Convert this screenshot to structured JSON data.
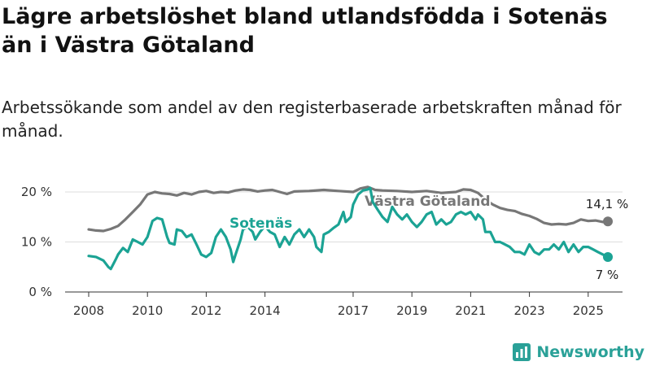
{
  "header": {
    "title": "Lägre arbetslöshet bland utlandsfödda i Sotenäs än i Västra Götaland",
    "subtitle": "Arbetssökande som andel av den registerbaserade arbetskraften månad för månad."
  },
  "brand": {
    "name": "Newsworthy",
    "icon": "newsworthy-logo-icon",
    "color": "#2aa198"
  },
  "colors": {
    "sotenas": "#1ba394",
    "vastra": "#777777",
    "grid": "#dddddd",
    "axis": "#333333"
  },
  "chart_data": {
    "type": "line",
    "title": "Lägre arbetslöshet bland utlandsfödda i Sotenäs än i Västra Götaland",
    "subtitle": "Arbetssökande som andel av den registerbaserade arbetskraften månad för månad.",
    "x_ticks": [
      "2008",
      "2010",
      "2012",
      "2014",
      "2017",
      "2019",
      "2021",
      "2023",
      "2025"
    ],
    "y_ticks": [
      "0 %",
      "10 %",
      "20 %"
    ],
    "ylim": [
      0,
      20
    ],
    "grid": true,
    "series": [
      {
        "name": "Västra Götaland",
        "end_label": "14,1 %",
        "points": [
          [
            2008.0,
            12.5
          ],
          [
            2008.25,
            12.3
          ],
          [
            2008.5,
            12.2
          ],
          [
            2008.75,
            12.6
          ],
          [
            2009.0,
            13.2
          ],
          [
            2009.25,
            14.5
          ],
          [
            2009.5,
            16.0
          ],
          [
            2009.75,
            17.5
          ],
          [
            2010.0,
            19.5
          ],
          [
            2010.25,
            20.0
          ],
          [
            2010.5,
            19.7
          ],
          [
            2010.75,
            19.6
          ],
          [
            2011.0,
            19.3
          ],
          [
            2011.25,
            19.8
          ],
          [
            2011.5,
            19.5
          ],
          [
            2011.75,
            20.0
          ],
          [
            2012.0,
            20.2
          ],
          [
            2012.25,
            19.8
          ],
          [
            2012.5,
            20.0
          ],
          [
            2012.75,
            19.9
          ],
          [
            2013.0,
            20.3
          ],
          [
            2013.25,
            20.5
          ],
          [
            2013.5,
            20.4
          ],
          [
            2013.75,
            20.1
          ],
          [
            2014.0,
            20.3
          ],
          [
            2014.25,
            20.4
          ],
          [
            2014.5,
            20.0
          ],
          [
            2014.75,
            19.6
          ],
          [
            2015.0,
            20.1
          ],
          [
            2015.5,
            20.2
          ],
          [
            2016.0,
            20.4
          ],
          [
            2016.5,
            20.2
          ],
          [
            2017.0,
            20.0
          ],
          [
            2017.25,
            20.7
          ],
          [
            2017.5,
            21.0
          ],
          [
            2017.75,
            20.4
          ],
          [
            2018.0,
            20.3
          ],
          [
            2018.5,
            20.2
          ],
          [
            2019.0,
            20.0
          ],
          [
            2019.5,
            20.2
          ],
          [
            2020.0,
            19.8
          ],
          [
            2020.5,
            20.0
          ],
          [
            2020.75,
            20.5
          ],
          [
            2021.0,
            20.4
          ],
          [
            2021.25,
            19.8
          ],
          [
            2021.5,
            18.5
          ],
          [
            2021.75,
            17.5
          ],
          [
            2022.0,
            16.8
          ],
          [
            2022.25,
            16.4
          ],
          [
            2022.5,
            16.2
          ],
          [
            2022.75,
            15.6
          ],
          [
            2023.0,
            15.2
          ],
          [
            2023.25,
            14.6
          ],
          [
            2023.5,
            13.8
          ],
          [
            2023.75,
            13.5
          ],
          [
            2024.0,
            13.6
          ],
          [
            2024.25,
            13.5
          ],
          [
            2024.5,
            13.8
          ],
          [
            2024.75,
            14.5
          ],
          [
            2025.0,
            14.2
          ],
          [
            2025.25,
            14.3
          ],
          [
            2025.5,
            14.0
          ],
          [
            2025.67,
            14.1
          ]
        ]
      },
      {
        "name": "Sotenäs",
        "end_label": "7 %",
        "points": [
          [
            2008.0,
            7.2
          ],
          [
            2008.25,
            7.0
          ],
          [
            2008.5,
            6.3
          ],
          [
            2008.67,
            5.0
          ],
          [
            2008.75,
            4.6
          ],
          [
            2008.92,
            6.5
          ],
          [
            2009.0,
            7.5
          ],
          [
            2009.17,
            8.8
          ],
          [
            2009.33,
            8.0
          ],
          [
            2009.5,
            10.5
          ],
          [
            2009.67,
            10.0
          ],
          [
            2009.83,
            9.5
          ],
          [
            2010.0,
            11.0
          ],
          [
            2010.17,
            14.2
          ],
          [
            2010.33,
            14.8
          ],
          [
            2010.5,
            14.5
          ],
          [
            2010.67,
            11.0
          ],
          [
            2010.75,
            9.8
          ],
          [
            2010.92,
            9.5
          ],
          [
            2011.0,
            12.5
          ],
          [
            2011.17,
            12.2
          ],
          [
            2011.33,
            11.0
          ],
          [
            2011.5,
            11.5
          ],
          [
            2011.67,
            9.5
          ],
          [
            2011.83,
            7.5
          ],
          [
            2012.0,
            7.0
          ],
          [
            2012.17,
            7.8
          ],
          [
            2012.33,
            11.0
          ],
          [
            2012.5,
            12.5
          ],
          [
            2012.67,
            11.0
          ],
          [
            2012.83,
            8.5
          ],
          [
            2012.92,
            6.0
          ],
          [
            2013.0,
            7.5
          ],
          [
            2013.17,
            10.5
          ],
          [
            2013.25,
            12.5
          ],
          [
            2013.42,
            13.0
          ],
          [
            2013.58,
            12.0
          ],
          [
            2013.67,
            10.5
          ],
          [
            2013.83,
            12.0
          ],
          [
            2014.0,
            13.2
          ],
          [
            2014.17,
            12.0
          ],
          [
            2014.33,
            11.5
          ],
          [
            2014.5,
            9.0
          ],
          [
            2014.67,
            11.0
          ],
          [
            2014.83,
            9.5
          ],
          [
            2015.0,
            11.5
          ],
          [
            2015.17,
            12.5
          ],
          [
            2015.33,
            11.0
          ],
          [
            2015.5,
            12.5
          ],
          [
            2015.67,
            11.0
          ],
          [
            2015.75,
            9.0
          ],
          [
            2015.92,
            8.0
          ],
          [
            2016.0,
            11.5
          ],
          [
            2016.17,
            12.0
          ],
          [
            2016.33,
            12.8
          ],
          [
            2016.5,
            13.5
          ],
          [
            2016.67,
            16.0
          ],
          [
            2016.75,
            14.0
          ],
          [
            2016.92,
            15.0
          ],
          [
            2017.0,
            17.5
          ],
          [
            2017.17,
            19.5
          ],
          [
            2017.33,
            20.3
          ],
          [
            2017.5,
            20.5
          ],
          [
            2017.58,
            20.8
          ],
          [
            2017.67,
            18.0
          ],
          [
            2017.83,
            16.5
          ],
          [
            2018.0,
            15.0
          ],
          [
            2018.17,
            14.0
          ],
          [
            2018.33,
            17.0
          ],
          [
            2018.5,
            15.5
          ],
          [
            2018.67,
            14.5
          ],
          [
            2018.83,
            15.5
          ],
          [
            2019.0,
            14.0
          ],
          [
            2019.17,
            13.0
          ],
          [
            2019.33,
            14.0
          ],
          [
            2019.5,
            15.5
          ],
          [
            2019.67,
            16.0
          ],
          [
            2019.83,
            13.5
          ],
          [
            2020.0,
            14.5
          ],
          [
            2020.17,
            13.5
          ],
          [
            2020.33,
            14.0
          ],
          [
            2020.5,
            15.5
          ],
          [
            2020.67,
            16.0
          ],
          [
            2020.83,
            15.5
          ],
          [
            2021.0,
            16.0
          ],
          [
            2021.17,
            14.5
          ],
          [
            2021.25,
            15.5
          ],
          [
            2021.42,
            14.5
          ],
          [
            2021.5,
            12.0
          ],
          [
            2021.67,
            12.0
          ],
          [
            2021.83,
            10.0
          ],
          [
            2022.0,
            10.0
          ],
          [
            2022.17,
            9.5
          ],
          [
            2022.33,
            9.0
          ],
          [
            2022.5,
            8.0
          ],
          [
            2022.67,
            8.0
          ],
          [
            2022.83,
            7.5
          ],
          [
            2023.0,
            9.5
          ],
          [
            2023.17,
            8.0
          ],
          [
            2023.33,
            7.5
          ],
          [
            2023.5,
            8.5
          ],
          [
            2023.67,
            8.5
          ],
          [
            2023.83,
            9.5
          ],
          [
            2024.0,
            8.5
          ],
          [
            2024.17,
            10.0
          ],
          [
            2024.33,
            8.0
          ],
          [
            2024.5,
            9.5
          ],
          [
            2024.67,
            8.0
          ],
          [
            2024.83,
            9.0
          ],
          [
            2025.0,
            9.0
          ],
          [
            2025.17,
            8.5
          ],
          [
            2025.33,
            8.0
          ],
          [
            2025.5,
            7.5
          ],
          [
            2025.67,
            7.0
          ]
        ]
      }
    ]
  }
}
